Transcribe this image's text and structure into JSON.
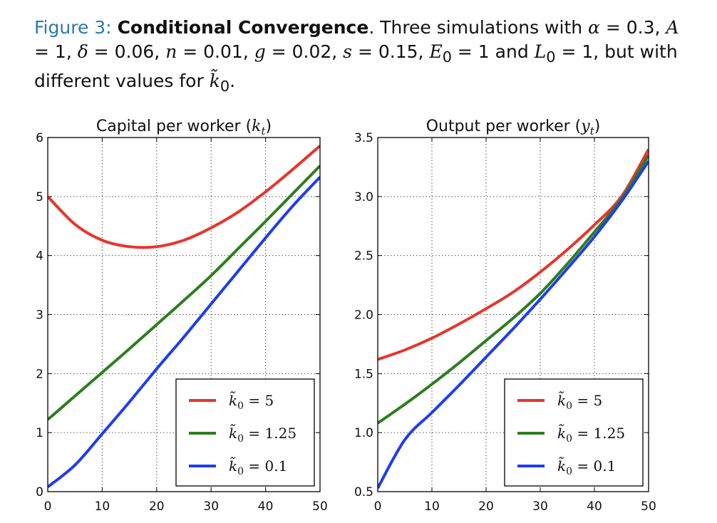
{
  "caption": {
    "figure_label": "Figure 3:",
    "bold_title": "Conditional Convergence",
    "params": {
      "alpha": "0.3",
      "A": "1",
      "delta": "0.06",
      "n": "0.01",
      "g": "0.02",
      "s": "0.15",
      "E0": "1",
      "L0": "1"
    }
  },
  "colors": {
    "red": "#e8352b",
    "green": "#2e7d1f",
    "blue": "#1f3cf2",
    "grid": "#555555"
  },
  "chart_data": [
    {
      "type": "line",
      "title": "Capital per worker",
      "title_symbol": "k",
      "title_sub": "t",
      "xlim": [
        0,
        50
      ],
      "ylim": [
        0,
        6
      ],
      "xticks": [
        "0",
        "10",
        "20",
        "30",
        "40",
        "50"
      ],
      "yticks": [
        "0",
        "1",
        "2",
        "3",
        "4",
        "5",
        "6"
      ],
      "grid": true,
      "legend_position": "lower-right",
      "x": [
        0,
        5,
        10,
        15,
        20,
        25,
        30,
        35,
        40,
        45,
        50
      ],
      "series": [
        {
          "name": "k̃0 = 5",
          "color": "red",
          "values": [
            5.0,
            4.53,
            4.26,
            4.15,
            4.15,
            4.26,
            4.47,
            4.74,
            5.08,
            5.46,
            5.86
          ]
        },
        {
          "name": "k̃0 = 1.25",
          "color": "green",
          "values": [
            1.22,
            1.62,
            2.02,
            2.42,
            2.83,
            3.24,
            3.66,
            4.12,
            4.58,
            5.05,
            5.52
          ]
        },
        {
          "name": "k̃0 = 0.1",
          "color": "blue",
          "values": [
            0.08,
            0.45,
            0.98,
            1.52,
            2.08,
            2.62,
            3.18,
            3.74,
            4.3,
            4.84,
            5.33
          ]
        }
      ]
    },
    {
      "type": "line",
      "title": "Output per worker",
      "title_symbol": "y",
      "title_sub": "t",
      "xlim": [
        0,
        50
      ],
      "ylim": [
        0.5,
        3.5
      ],
      "xticks": [
        "0",
        "10",
        "20",
        "30",
        "40",
        "50"
      ],
      "yticks": [
        "0.5",
        "1.0",
        "1.5",
        "2.0",
        "2.5",
        "3.0",
        "3.5"
      ],
      "grid": true,
      "legend_position": "lower-right",
      "x": [
        0,
        5,
        10,
        15,
        20,
        25,
        30,
        35,
        40,
        45,
        50
      ],
      "series": [
        {
          "name": "k̃0 = 5",
          "color": "red",
          "values": [
            1.62,
            1.7,
            1.8,
            1.92,
            2.05,
            2.19,
            2.36,
            2.55,
            2.76,
            3.0,
            3.4
          ]
        },
        {
          "name": "k̃0 = 1.25",
          "color": "green",
          "values": [
            1.08,
            1.24,
            1.41,
            1.59,
            1.78,
            1.97,
            2.18,
            2.43,
            2.7,
            2.98,
            3.35
          ]
        },
        {
          "name": "k̃0 = 0.1",
          "color": "blue",
          "values": [
            0.53,
            0.94,
            1.17,
            1.4,
            1.64,
            1.88,
            2.13,
            2.39,
            2.66,
            2.96,
            3.3
          ]
        }
      ]
    }
  ]
}
